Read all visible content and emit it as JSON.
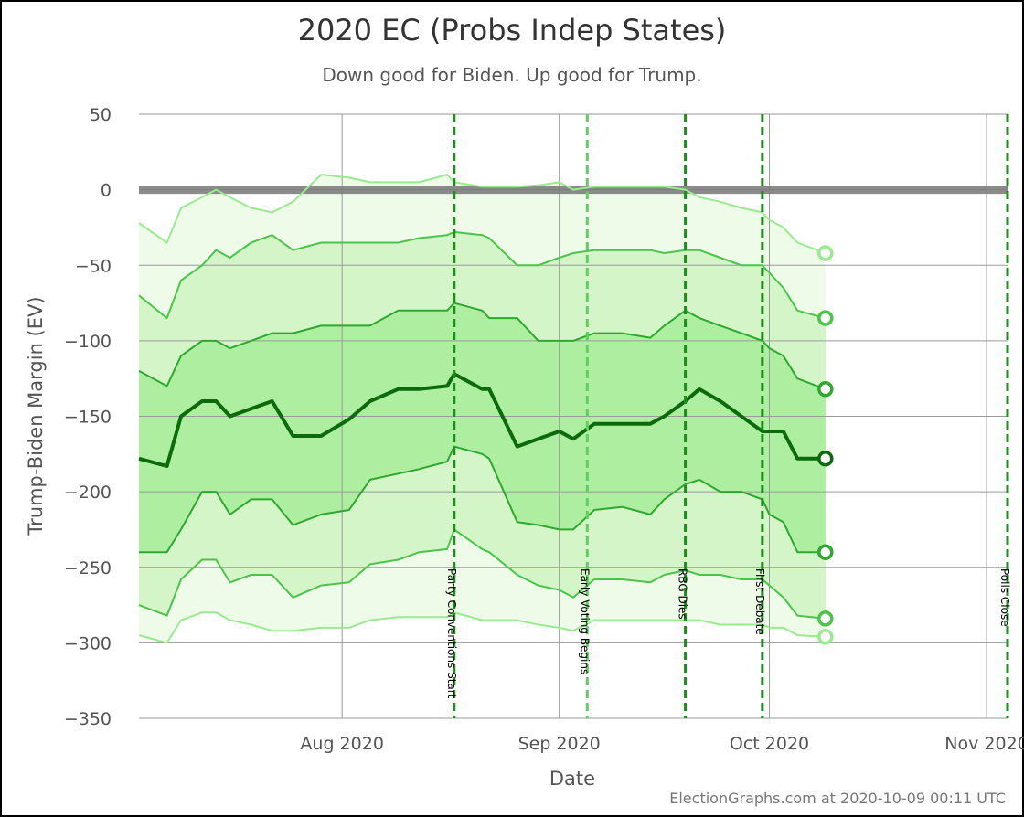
{
  "chart_data": {
    "type": "area",
    "title": "2020 EC (Probs Indep States)",
    "subtitle": "Down good for Biden. Up good for Trump.",
    "xlabel": "Date",
    "ylabel": "Trump-Biden Margin (EV)",
    "ylim": [
      -350,
      50
    ],
    "yticks": [
      50,
      0,
      -50,
      -100,
      -150,
      -200,
      -250,
      -300,
      -350
    ],
    "xlim": [
      "2020-07-03",
      "2020-11-04"
    ],
    "xticks": [
      {
        "date": "2020-08-01",
        "label": "Aug 2020"
      },
      {
        "date": "2020-09-01",
        "label": "Sep 2020"
      },
      {
        "date": "2020-10-01",
        "label": "Oct 2020"
      },
      {
        "date": "2020-11-01",
        "label": "Nov 2020"
      }
    ],
    "grid": true,
    "tie_line": 0,
    "events": [
      {
        "date": "2020-08-17",
        "label": "Party Conventions Start"
      },
      {
        "date": "2020-09-05",
        "label": "Early Voting Begins"
      },
      {
        "date": "2020-09-19",
        "label": "RBG Dies"
      },
      {
        "date": "2020-09-30",
        "label": "First Debate"
      },
      {
        "date": "2020-11-04",
        "label": "Polls Close"
      }
    ],
    "dates": [
      "2020-07-03",
      "2020-07-07",
      "2020-07-09",
      "2020-07-12",
      "2020-07-14",
      "2020-07-16",
      "2020-07-19",
      "2020-07-22",
      "2020-07-25",
      "2020-07-29",
      "2020-08-02",
      "2020-08-05",
      "2020-08-09",
      "2020-08-12",
      "2020-08-16",
      "2020-08-17",
      "2020-08-21",
      "2020-08-22",
      "2020-08-26",
      "2020-08-29",
      "2020-09-01",
      "2020-09-03",
      "2020-09-06",
      "2020-09-10",
      "2020-09-14",
      "2020-09-16",
      "2020-09-19",
      "2020-09-21",
      "2020-09-24",
      "2020-09-27",
      "2020-09-30",
      "2020-10-01",
      "2020-10-03",
      "2020-10-05",
      "2020-10-09"
    ],
    "series": [
      {
        "values": [
          -22,
          -35,
          -12,
          -5,
          0,
          -5,
          -12,
          -15,
          -8,
          10,
          8,
          5,
          5,
          5,
          10,
          5,
          2,
          2,
          2,
          3,
          5,
          0,
          2,
          2,
          2,
          2,
          0,
          -5,
          -8,
          -12,
          -15,
          -20,
          -25,
          -35,
          -42
        ]
      },
      {
        "values": [
          -70,
          -85,
          -60,
          -50,
          -40,
          -45,
          -35,
          -30,
          -40,
          -35,
          -35,
          -35,
          -35,
          -32,
          -30,
          -28,
          -30,
          -32,
          -50,
          -50,
          -45,
          -42,
          -40,
          -40,
          -40,
          -42,
          -40,
          -40,
          -45,
          -50,
          -50,
          -55,
          -65,
          -80,
          -85
        ]
      },
      {
        "values": [
          -120,
          -130,
          -110,
          -100,
          -100,
          -105,
          -100,
          -95,
          -95,
          -90,
          -90,
          -90,
          -80,
          -80,
          -80,
          -75,
          -80,
          -85,
          -85,
          -100,
          -100,
          -100,
          -95,
          -95,
          -98,
          -90,
          -80,
          -85,
          -90,
          -95,
          -100,
          -105,
          -110,
          -125,
          -132
        ]
      },
      {
        "values": [
          -178,
          -183,
          -150,
          -140,
          -140,
          -150,
          -145,
          -140,
          -163,
          -163,
          -152,
          -140,
          -132,
          -132,
          -130,
          -122,
          -132,
          -132,
          -170,
          -165,
          -160,
          -165,
          -155,
          -155,
          -155,
          -150,
          -140,
          -132,
          -140,
          -150,
          -160,
          -160,
          -160,
          -178,
          -178
        ]
      },
      {
        "values": [
          -240,
          -240,
          -225,
          -200,
          -200,
          -215,
          -205,
          -205,
          -222,
          -215,
          -212,
          -192,
          -188,
          -185,
          -180,
          -170,
          -175,
          -178,
          -220,
          -222,
          -225,
          -225,
          -212,
          -210,
          -215,
          -205,
          -195,
          -192,
          -200,
          -200,
          -205,
          -215,
          -220,
          -240,
          -240
        ]
      },
      {
        "values": [
          -275,
          -282,
          -258,
          -245,
          -245,
          -260,
          -255,
          -255,
          -270,
          -262,
          -260,
          -248,
          -245,
          -240,
          -238,
          -225,
          -238,
          -240,
          -255,
          -262,
          -265,
          -270,
          -258,
          -258,
          -260,
          -255,
          -252,
          -255,
          -255,
          -258,
          -258,
          -262,
          -270,
          -282,
          -284
        ]
      },
      {
        "values": [
          -295,
          -300,
          -285,
          -280,
          -280,
          -285,
          -288,
          -292,
          -292,
          -290,
          -290,
          -285,
          -283,
          -283,
          -283,
          -280,
          -285,
          -285,
          -285,
          -288,
          -290,
          -292,
          -285,
          -285,
          -285,
          -285,
          -285,
          -285,
          -288,
          -288,
          -288,
          -290,
          -290,
          -295,
          -296
        ]
      }
    ],
    "colors": {
      "outer_band": "#edfbe8",
      "mid_band": "#d4f5c8",
      "inner_band": "#aeeea0",
      "outer_line": "#9aea8f",
      "mid_line": "#4cc44c",
      "inner_line": "#2ea82e",
      "median_line": "#0b6b0b",
      "event_line": "#1a8f1a",
      "event_line_light": "#5fd05f",
      "tie_line": "#777777",
      "grid": "#9a9a9a"
    }
  },
  "footer": {
    "credit": "ElectionGraphs.com at 2020-10-09 00:11 UTC"
  }
}
